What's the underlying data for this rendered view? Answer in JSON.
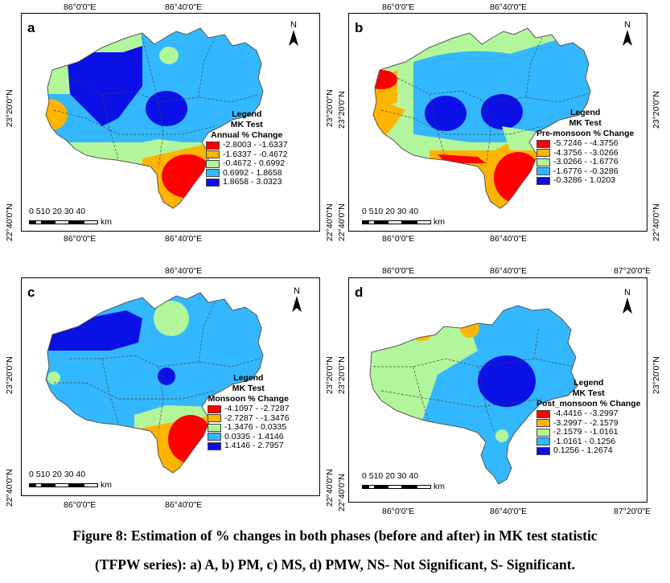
{
  "figure": {
    "caption_line1": "Figure 8: Estimation of % changes in both phases (before and after) in MK test statistic",
    "caption_line2": "(TFPW series): a) A, b) PM, c) MS, d) PMW, NS- Not Significant, S- Significant."
  },
  "common": {
    "north_label": "N",
    "scale_numbers": "0 510  20  30  40",
    "scale_unit": "km",
    "lon_86": "86°0'0\"E",
    "lon_8640": "86°40'0\"E",
    "lon_8720": "87°20'0\"E",
    "lat_2320": "23°20'0\"N",
    "lat_2240": "22°40'0\"N"
  },
  "colors": {
    "red": "#ff0000",
    "orange": "#ffb400",
    "lightgreen": "#b3f59b",
    "lightblue": "#33b8ff",
    "darkblue": "#0a10e6"
  },
  "panels": [
    {
      "label": "a",
      "legend_title": "Legend",
      "legend_subtitle1": "MK Test",
      "legend_subtitle2": "Annual % Change",
      "classes": [
        {
          "range": "-2.8003 - -1.6337",
          "color": "#ff0000"
        },
        {
          "range": "-1.6337 - -0.4672",
          "color": "#ffb400"
        },
        {
          "range": "-0.4672 - 0.6992",
          "color": "#b3f59b"
        },
        {
          "range": "0.6992 - 1.8658",
          "color": "#33b8ff"
        },
        {
          "range": "1.8658 - 3.0323",
          "color": "#0a10e6"
        }
      ]
    },
    {
      "label": "b",
      "legend_title": "Legend",
      "legend_subtitle1": "MK Test",
      "legend_subtitle2": "Pre-monsoon % Change",
      "classes": [
        {
          "range": "-5.7246 - -4.3756",
          "color": "#ff0000"
        },
        {
          "range": "-4.3756 - -3.0266",
          "color": "#ffb400"
        },
        {
          "range": "-3.0266 - -1.6776",
          "color": "#b3f59b"
        },
        {
          "range": "-1.6776 - -0.3286",
          "color": "#33b8ff"
        },
        {
          "range": "-0.3286 - 1.0203",
          "color": "#0a10e6"
        }
      ]
    },
    {
      "label": "c",
      "legend_title": "Legend",
      "legend_subtitle1": "MK Test",
      "legend_subtitle2": "Monsoon % Change",
      "classes": [
        {
          "range": "-4.1097 - -2.7287",
          "color": "#ff0000"
        },
        {
          "range": "-2.7287 - -1.3476",
          "color": "#ffb400"
        },
        {
          "range": "-1.3476 - 0.0335",
          "color": "#b3f59b"
        },
        {
          "range": "0.0335 - 1.4146",
          "color": "#33b8ff"
        },
        {
          "range": "1.4146 - 2.7957",
          "color": "#0a10e6"
        }
      ]
    },
    {
      "label": "d",
      "legend_title": "Legend",
      "legend_subtitle1": "MK Test",
      "legend_subtitle2": "Post_monsoon % Change",
      "classes": [
        {
          "range": "-4.4416 - -3.2997",
          "color": "#ff0000"
        },
        {
          "range": "-3.2997 - -2.1579",
          "color": "#ffb400"
        },
        {
          "range": "-2.1579 - -1.0161",
          "color": "#b3f59b"
        },
        {
          "range": "-1.0161 - 0.1256",
          "color": "#33b8ff"
        },
        {
          "range": "0.1256 - 1.2674",
          "color": "#0a10e6"
        }
      ]
    }
  ]
}
